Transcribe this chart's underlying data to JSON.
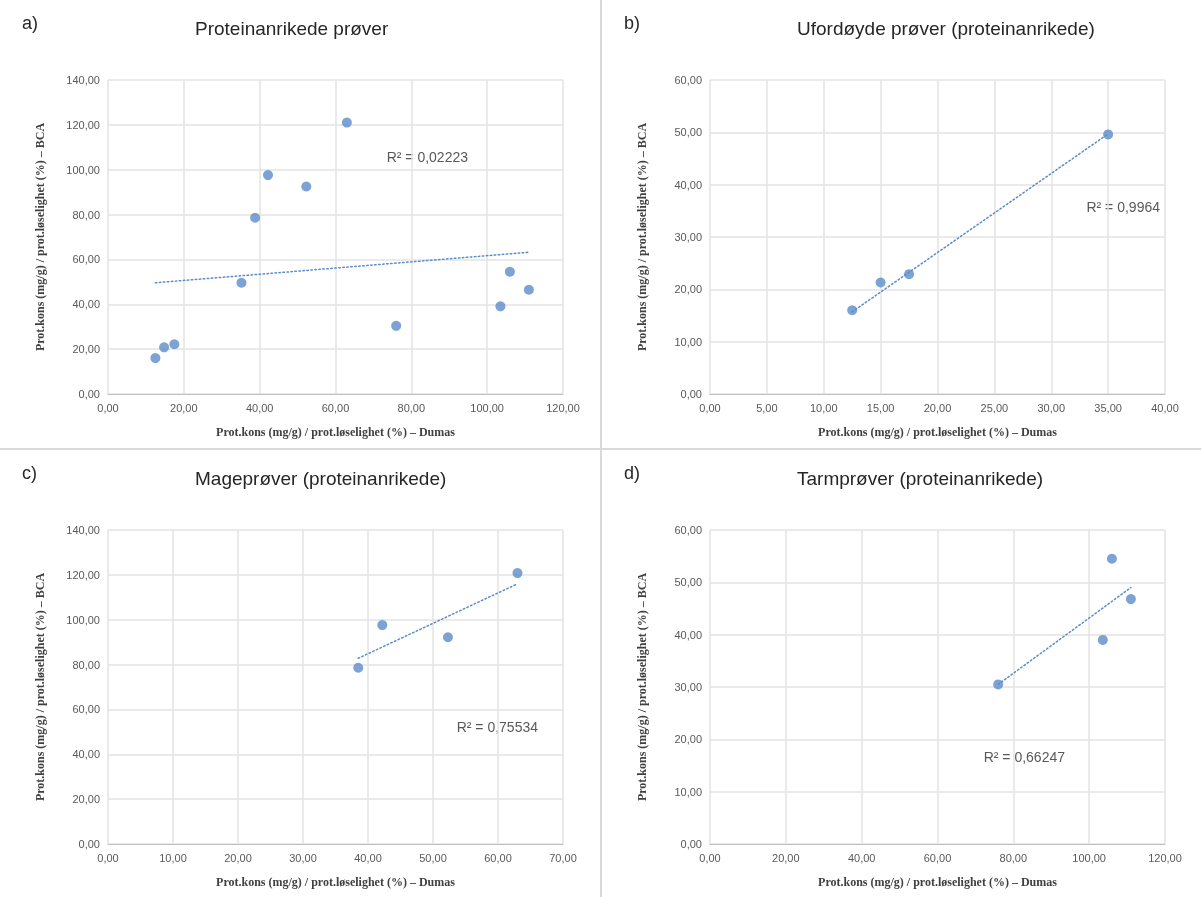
{
  "chart_data": [
    {
      "type": "scatter",
      "title": "Proteinanrikede prøver",
      "xlabel": "Prot.kons (mg/g) / prot.løselighet (%) – Dumas",
      "ylabel": "Prot.kons (mg/g) / prot.løselighet (%) – BCA",
      "annotations": [
        "a)",
        "R² = 0,02223"
      ],
      "grid": true,
      "xlim": [
        0,
        120
      ],
      "ylim": [
        0,
        140
      ],
      "xticks": [
        {
          "value": 0,
          "label": "0,00"
        },
        {
          "value": 20,
          "label": "20,00"
        },
        {
          "value": 40,
          "label": "40,00"
        },
        {
          "value": 60,
          "label": "60,00"
        },
        {
          "value": 80,
          "label": "80,00"
        },
        {
          "value": 100,
          "label": "100,00"
        },
        {
          "value": 120,
          "label": "120,00"
        }
      ],
      "yticks": [
        {
          "value": 0,
          "label": "0,00"
        },
        {
          "value": 20,
          "label": "20,00"
        },
        {
          "value": 40,
          "label": "40,00"
        },
        {
          "value": 60,
          "label": "60,00"
        },
        {
          "value": 80,
          "label": "80,00"
        },
        {
          "value": 100,
          "label": "100,00"
        },
        {
          "value": 120,
          "label": "120,00"
        },
        {
          "value": 140,
          "label": "140,00"
        }
      ],
      "series": [
        {
          "color": "#5b8cc8",
          "marker": "circle",
          "x": [
            12.5,
            14.8,
            17.5,
            35.2,
            38.8,
            42.2,
            52.3,
            63,
            76,
            103.5,
            106,
            111
          ],
          "values": [
            16,
            20.8,
            22.2,
            49.6,
            78.6,
            97.6,
            92.5,
            121,
            30.4,
            39.1,
            54.5,
            46.5
          ]
        },
        {
          "type": "line",
          "color": "#5b8cc8",
          "marker": "none",
          "line_style": "dotted",
          "x": [
            12.5,
            111
          ],
          "values": [
            49.6,
            63.2
          ]
        }
      ]
    },
    {
      "type": "scatter",
      "title": "Ufordøyde prøver (proteinanrikede)",
      "xlabel": "Prot.kons (mg/g) / prot.løselighet (%) – Dumas",
      "ylabel": "Prot.kons (mg/g) / prot.løselighet (%) – BCA",
      "annotations": [
        "b)",
        "R² = 0,9964"
      ],
      "grid": true,
      "xlim": [
        0,
        40
      ],
      "ylim": [
        0,
        60
      ],
      "xticks": [
        {
          "value": 0,
          "label": "0,00"
        },
        {
          "value": 5,
          "label": "5,00"
        },
        {
          "value": 10,
          "label": "10,00"
        },
        {
          "value": 15,
          "label": "15,00"
        },
        {
          "value": 20,
          "label": "20,00"
        },
        {
          "value": 25,
          "label": "25,00"
        },
        {
          "value": 30,
          "label": "30,00"
        },
        {
          "value": 35,
          "label": "35,00"
        },
        {
          "value": 40,
          "label": "40,00"
        }
      ],
      "yticks": [
        {
          "value": 0,
          "label": "0,00"
        },
        {
          "value": 10,
          "label": "10,00"
        },
        {
          "value": 20,
          "label": "20,00"
        },
        {
          "value": 30,
          "label": "30,00"
        },
        {
          "value": 40,
          "label": "40,00"
        },
        {
          "value": 50,
          "label": "50,00"
        },
        {
          "value": 60,
          "label": "60,00"
        }
      ],
      "series": [
        {
          "color": "#5b8cc8",
          "marker": "circle",
          "x": [
            12.5,
            15,
            17.5,
            35
          ],
          "values": [
            16,
            21.3,
            22.9,
            49.6
          ]
        },
        {
          "type": "line",
          "color": "#5b8cc8",
          "marker": "none",
          "line_style": "dotted",
          "x": [
            12.5,
            35
          ],
          "values": [
            15.7,
            49.7
          ]
        }
      ]
    },
    {
      "type": "scatter",
      "title": "Mageprøver (proteinanrikede)",
      "xlabel": "Prot.kons (mg/g) / prot.løselighet (%) – Dumas",
      "ylabel": "Prot.kons (mg/g) / prot.løselighet (%) – BCA",
      "annotations": [
        "c)",
        "R² = 0,75534"
      ],
      "grid": true,
      "xlim": [
        0,
        70
      ],
      "ylim": [
        0,
        140
      ],
      "xticks": [
        {
          "value": 0,
          "label": "0,00"
        },
        {
          "value": 10,
          "label": "10,00"
        },
        {
          "value": 20,
          "label": "20,00"
        },
        {
          "value": 30,
          "label": "30,00"
        },
        {
          "value": 40,
          "label": "40,00"
        },
        {
          "value": 50,
          "label": "50,00"
        },
        {
          "value": 60,
          "label": "60,00"
        },
        {
          "value": 70,
          "label": "70,00"
        }
      ],
      "yticks": [
        {
          "value": 0,
          "label": "0,00"
        },
        {
          "value": 20,
          "label": "20,00"
        },
        {
          "value": 40,
          "label": "40,00"
        },
        {
          "value": 60,
          "label": "60,00"
        },
        {
          "value": 80,
          "label": "80,00"
        },
        {
          "value": 100,
          "label": "100,00"
        },
        {
          "value": 120,
          "label": "120,00"
        },
        {
          "value": 140,
          "label": "140,00"
        }
      ],
      "series": [
        {
          "color": "#5b8cc8",
          "marker": "circle",
          "x": [
            38.5,
            42.2,
            52.3,
            63
          ],
          "values": [
            78.6,
            97.6,
            92.2,
            120.8
          ]
        },
        {
          "type": "line",
          "color": "#5b8cc8",
          "marker": "none",
          "line_style": "dotted",
          "x": [
            38.5,
            63
          ],
          "values": [
            82.8,
            116
          ]
        }
      ]
    },
    {
      "type": "scatter",
      "title": "Tarmprøver (proteinanrikede)",
      "xlabel": "Prot.kons (mg/g) / prot.løselighet (%) – Dumas",
      "ylabel": "Prot.kons (mg/g) / prot.løselighet (%) – BCA",
      "annotations": [
        "d)",
        "R² = 0,66247"
      ],
      "grid": true,
      "xlim": [
        0,
        120
      ],
      "ylim": [
        0,
        60
      ],
      "xticks": [
        {
          "value": 0,
          "label": "0,00"
        },
        {
          "value": 20,
          "label": "20,00"
        },
        {
          "value": 40,
          "label": "40,00"
        },
        {
          "value": 60,
          "label": "60,00"
        },
        {
          "value": 80,
          "label": "80,00"
        },
        {
          "value": 100,
          "label": "100,00"
        },
        {
          "value": 120,
          "label": "120,00"
        }
      ],
      "yticks": [
        {
          "value": 0,
          "label": "0,00"
        },
        {
          "value": 10,
          "label": "10,00"
        },
        {
          "value": 20,
          "label": "20,00"
        },
        {
          "value": 30,
          "label": "30,00"
        },
        {
          "value": 40,
          "label": "40,00"
        },
        {
          "value": 50,
          "label": "50,00"
        },
        {
          "value": 60,
          "label": "60,00"
        }
      ],
      "series": [
        {
          "color": "#5b8cc8",
          "marker": "circle",
          "x": [
            76,
            103.6,
            106,
            111
          ],
          "values": [
            30.5,
            39,
            54.5,
            46.8
          ]
        },
        {
          "type": "line",
          "color": "#5b8cc8",
          "marker": "none",
          "line_style": "dotted",
          "x": [
            76,
            111
          ],
          "values": [
            30.5,
            49
          ]
        }
      ]
    }
  ]
}
